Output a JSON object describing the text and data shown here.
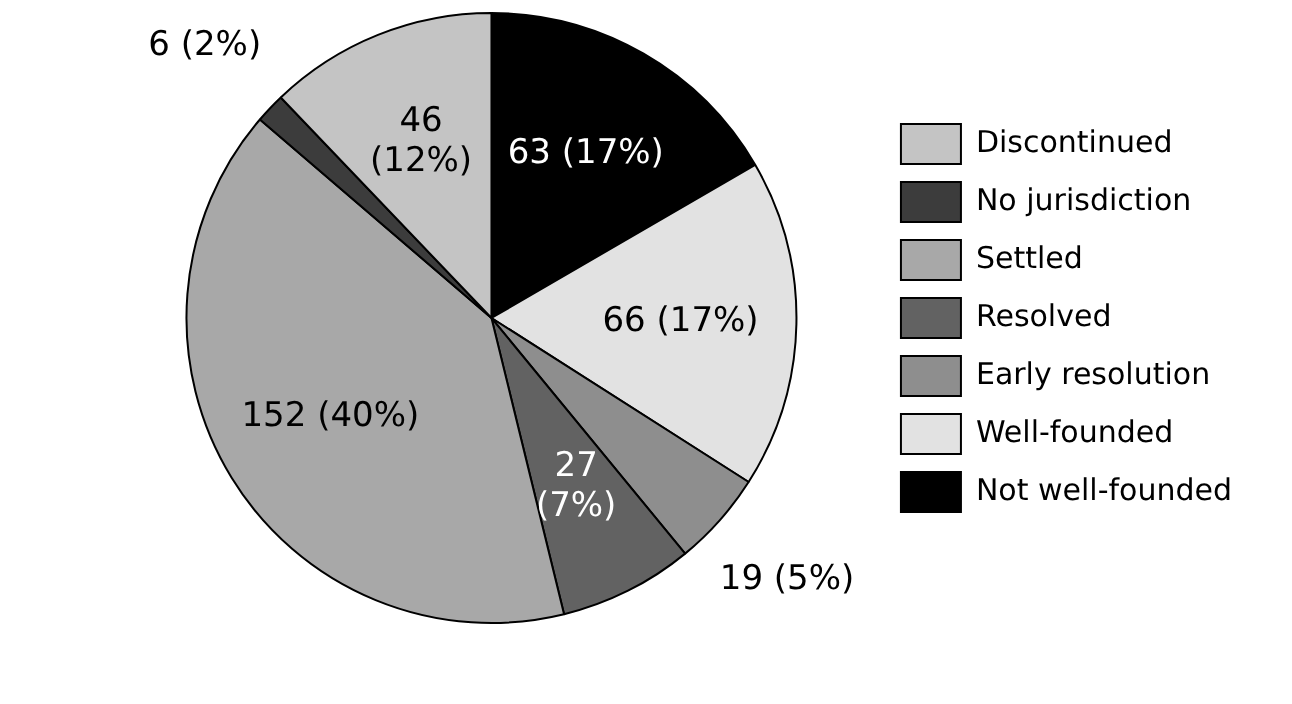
{
  "chart_data": {
    "type": "pie",
    "categories": [
      "Not well-founded",
      "Well-founded",
      "Early resolution",
      "Resolved",
      "Settled",
      "No jurisdiction",
      "Discontinued"
    ],
    "values": [
      63,
      66,
      19,
      27,
      152,
      6,
      46
    ],
    "colors": [
      "#000000",
      "#e2e2e2",
      "#8e8e8e",
      "#626262",
      "#a8a8a8",
      "#3c3c3c",
      "#c4c4c4"
    ],
    "value_labels": [
      "63 (17%)",
      "66 (17%)",
      "19 (5%)",
      "27 (7%)",
      "152 (40%)",
      "6 (2%)",
      "46 (12%)"
    ],
    "legend": "right"
  }
}
